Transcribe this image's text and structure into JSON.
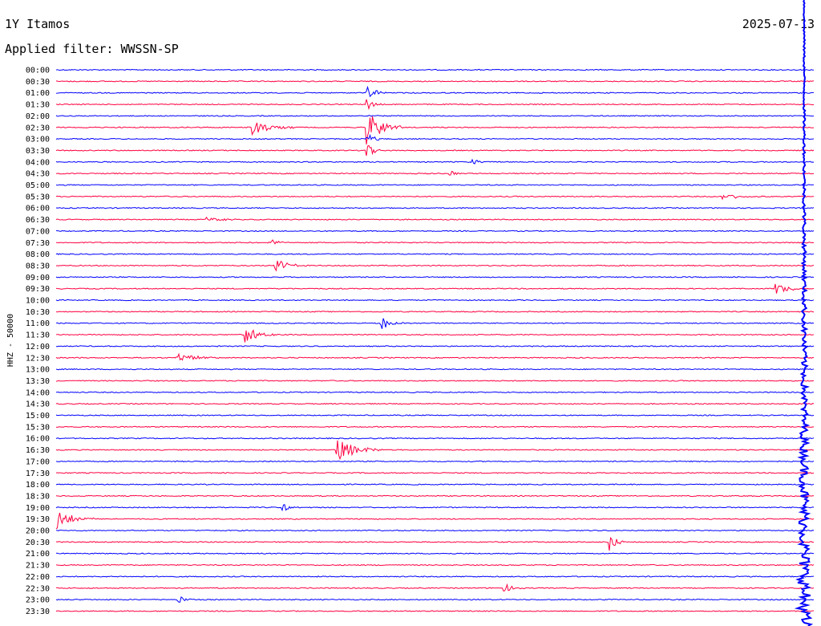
{
  "header": {
    "station": "1Y Itamos",
    "date": "2025-07-13",
    "filter": "Applied filter: WWSSN-SP"
  },
  "colors": {
    "trace_blue": "#0000ff",
    "trace_red": "#ff0040",
    "background": "#ffffff"
  },
  "chart_data": {
    "type": "line",
    "title": "1Y Itamos",
    "ylabel": "HHZ - 50000",
    "xlabel": "",
    "grid": false,
    "row_interval_minutes": 30,
    "tick_labels": [
      "00:00",
      "00:30",
      "01:00",
      "01:30",
      "02:00",
      "02:30",
      "03:00",
      "03:30",
      "04:00",
      "04:30",
      "05:00",
      "05:30",
      "06:00",
      "06:30",
      "07:00",
      "07:30",
      "08:00",
      "08:30",
      "09:00",
      "09:30",
      "10:00",
      "10:30",
      "11:00",
      "11:30",
      "12:00",
      "12:30",
      "13:00",
      "13:30",
      "14:00",
      "14:30",
      "15:00",
      "15:30",
      "16:00",
      "16:30",
      "17:00",
      "17:30",
      "18:00",
      "18:30",
      "19:00",
      "19:30",
      "20:00",
      "20:30",
      "21:00",
      "21:30",
      "22:00",
      "22:30",
      "23:00",
      "23:30"
    ],
    "series": [
      {
        "color": "#0000ff",
        "rows": "00:00, 01:00, 02:00 ... 23:00"
      },
      {
        "color": "#ff0040",
        "rows": "00:30, 01:30, 02:30 ... 23:30"
      }
    ],
    "events": [
      {
        "row": "01:00",
        "pos": 0.41,
        "amp": 7,
        "dur": 0.04
      },
      {
        "row": "01:30",
        "pos": 0.41,
        "amp": 8,
        "dur": 0.02
      },
      {
        "row": "02:30",
        "pos": 0.26,
        "amp": 9,
        "dur": 0.06
      },
      {
        "row": "02:30",
        "pos": 0.41,
        "amp": 22,
        "dur": 0.05
      },
      {
        "row": "03:00",
        "pos": 0.41,
        "amp": 12,
        "dur": 0.02
      },
      {
        "row": "03:30",
        "pos": 0.41,
        "amp": 14,
        "dur": 0.02
      },
      {
        "row": "04:00",
        "pos": 0.55,
        "amp": 4,
        "dur": 0.02
      },
      {
        "row": "04:30",
        "pos": 0.52,
        "amp": 4,
        "dur": 0.02
      },
      {
        "row": "05:30",
        "pos": 0.88,
        "amp": 4,
        "dur": 0.06
      },
      {
        "row": "06:30",
        "pos": 0.2,
        "amp": 3,
        "dur": 0.04
      },
      {
        "row": "07:30",
        "pos": 0.28,
        "amp": 5,
        "dur": 0.03
      },
      {
        "row": "08:30",
        "pos": 0.29,
        "amp": 9,
        "dur": 0.04
      },
      {
        "row": "09:30",
        "pos": 0.95,
        "amp": 7,
        "dur": 0.05
      },
      {
        "row": "11:00",
        "pos": 0.43,
        "amp": 8,
        "dur": 0.03
      },
      {
        "row": "11:30",
        "pos": 0.25,
        "amp": 12,
        "dur": 0.04
      },
      {
        "row": "12:30",
        "pos": 0.16,
        "amp": 6,
        "dur": 0.06
      },
      {
        "row": "16:30",
        "pos": 0.37,
        "amp": 14,
        "dur": 0.07
      },
      {
        "row": "19:00",
        "pos": 0.3,
        "amp": 5,
        "dur": 0.02
      },
      {
        "row": "19:30",
        "pos": 0.0,
        "amp": 14,
        "dur": 0.05
      },
      {
        "row": "20:30",
        "pos": 0.73,
        "amp": 16,
        "dur": 0.02
      },
      {
        "row": "22:30",
        "pos": 0.59,
        "amp": 6,
        "dur": 0.03
      },
      {
        "row": "23:00",
        "pos": 0.16,
        "amp": 5,
        "dur": 0.03
      }
    ]
  }
}
